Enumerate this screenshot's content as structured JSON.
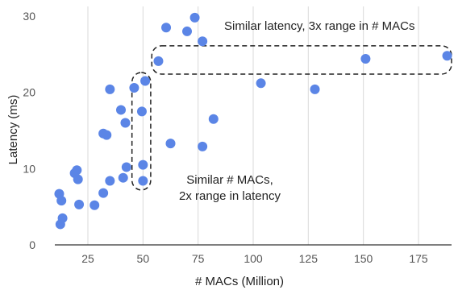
{
  "chart_data": {
    "type": "scatter",
    "xlabel": "# MACs (Million)",
    "ylabel": "Latency (ms)",
    "xlim": [
      10,
      190
    ],
    "ylim": [
      0,
      30
    ],
    "xticks": [
      25,
      50,
      75,
      100,
      125,
      150,
      175
    ],
    "yticks": [
      0,
      10,
      20,
      30
    ],
    "grid": "vertical",
    "point_color": "#5b85e6",
    "points": [
      {
        "x": 12,
        "y": 6.7
      },
      {
        "x": 13,
        "y": 5.8
      },
      {
        "x": 12.5,
        "y": 2.7
      },
      {
        "x": 13.5,
        "y": 3.5
      },
      {
        "x": 19,
        "y": 9.4
      },
      {
        "x": 20,
        "y": 9.8
      },
      {
        "x": 20.5,
        "y": 8.6
      },
      {
        "x": 21,
        "y": 5.3
      },
      {
        "x": 28,
        "y": 5.2
      },
      {
        "x": 32,
        "y": 6.8
      },
      {
        "x": 32,
        "y": 14.6
      },
      {
        "x": 33.5,
        "y": 14.4
      },
      {
        "x": 35,
        "y": 8.4
      },
      {
        "x": 35,
        "y": 20.4
      },
      {
        "x": 40,
        "y": 17.7
      },
      {
        "x": 41,
        "y": 8.8
      },
      {
        "x": 42,
        "y": 16
      },
      {
        "x": 42.5,
        "y": 10.2
      },
      {
        "x": 46,
        "y": 20.6
      },
      {
        "x": 49.5,
        "y": 17.5
      },
      {
        "x": 50,
        "y": 10.5
      },
      {
        "x": 50,
        "y": 8.4
      },
      {
        "x": 51,
        "y": 21.5
      },
      {
        "x": 57,
        "y": 24.1
      },
      {
        "x": 60.5,
        "y": 28.5
      },
      {
        "x": 62.5,
        "y": 13.3
      },
      {
        "x": 70,
        "y": 28.0
      },
      {
        "x": 73.5,
        "y": 29.8
      },
      {
        "x": 77,
        "y": 26.7
      },
      {
        "x": 77,
        "y": 12.9
      },
      {
        "x": 82,
        "y": 16.5
      },
      {
        "x": 103.5,
        "y": 21.2
      },
      {
        "x": 128,
        "y": 20.4
      },
      {
        "x": 151,
        "y": 24.4
      },
      {
        "x": 188,
        "y": 24.8
      }
    ],
    "annotations": [
      {
        "text": "Similar latency, 3x range in # MACs"
      },
      {
        "text": "Similar # MACs,"
      },
      {
        "text": "2x range in latency"
      }
    ],
    "highlight_boxes": [
      {
        "x_range": [
          54,
          190
        ],
        "y_range": [
          22.4,
          26.1
        ]
      },
      {
        "x_range": [
          45,
          53.5
        ],
        "y_range": [
          7.2,
          22.6
        ]
      }
    ]
  }
}
